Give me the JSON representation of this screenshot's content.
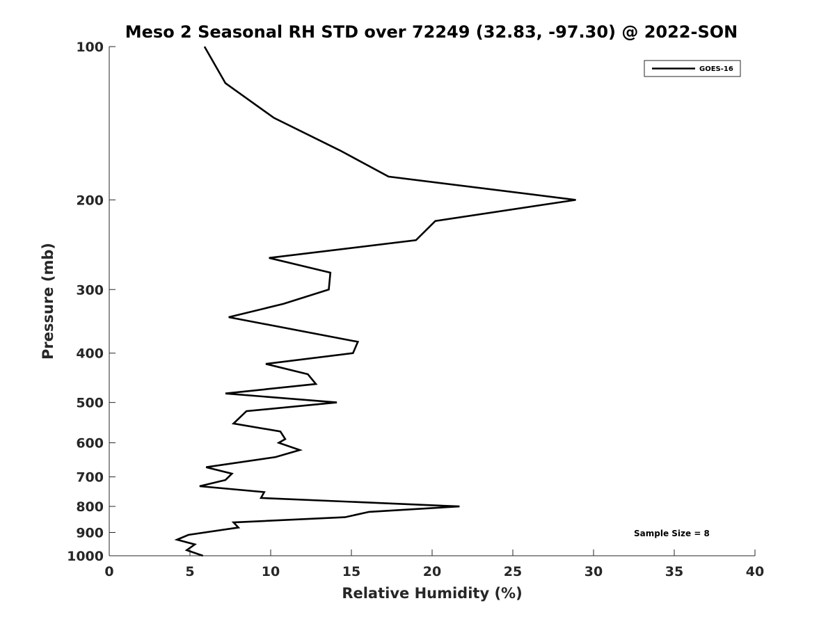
{
  "chart_data": {
    "type": "line",
    "title": "Meso 2 Seasonal RH STD over 72249 (32.83, -97.30) @ 2022-SON",
    "xlabel": "Relative Humidity (%)",
    "ylabel": "Pressure (mb)",
    "xlim": [
      0,
      40
    ],
    "ylim": [
      100,
      1000
    ],
    "yscale": "log",
    "yreversed": true,
    "grid": false,
    "legend_position": "top-right",
    "x_ticks": [
      0,
      5,
      10,
      15,
      20,
      25,
      30,
      35,
      40
    ],
    "y_ticks": [
      100,
      200,
      300,
      400,
      500,
      600,
      700,
      800,
      900,
      1000
    ],
    "series": [
      {
        "name": "GOES-16",
        "color": "#000000",
        "rh": [
          5.9,
          7.2,
          10.2,
          14.3,
          17.3,
          28.9,
          20.2,
          19.0,
          9.9,
          13.7,
          13.6,
          10.8,
          7.4,
          15.4,
          15.1,
          9.7,
          12.3,
          12.8,
          7.2,
          14.1,
          8.5,
          7.7,
          10.6,
          10.9,
          10.5,
          11.8,
          10.3,
          6.0,
          7.6,
          7.2,
          5.6,
          9.6,
          9.4,
          21.7,
          16.1,
          14.6,
          7.7,
          8.0,
          4.9,
          4.2,
          5.3,
          4.8,
          5.8
        ],
        "pressure": [
          100,
          118,
          138,
          160,
          180,
          200,
          220,
          240,
          260,
          278,
          300,
          320,
          340,
          380,
          400,
          420,
          440,
          460,
          480,
          500,
          520,
          550,
          570,
          590,
          600,
          620,
          640,
          670,
          690,
          710,
          730,
          750,
          770,
          800,
          820,
          840,
          860,
          880,
          910,
          930,
          950,
          975,
          1000
        ]
      }
    ],
    "annotation": "Sample Size = 8"
  }
}
